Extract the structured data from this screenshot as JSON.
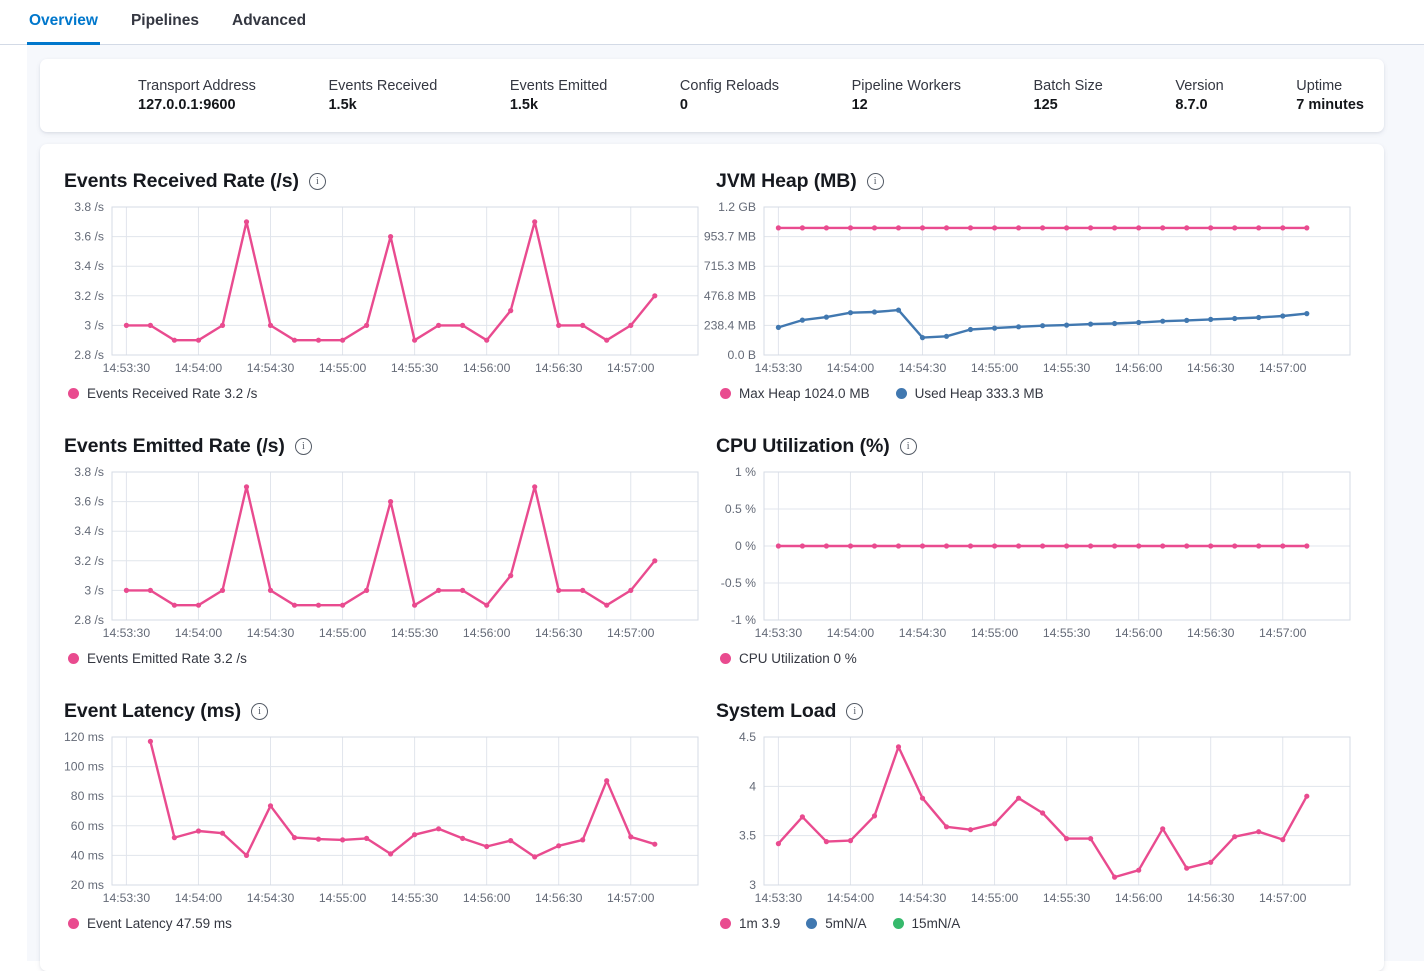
{
  "tabs": [
    {
      "label": "Overview",
      "active": true
    },
    {
      "label": "Pipelines",
      "active": false
    },
    {
      "label": "Advanced",
      "active": false
    }
  ],
  "stats": {
    "items": [
      {
        "label": "Transport Address",
        "value": "127.0.0.1:9600"
      },
      {
        "label": "Events Received",
        "value": "1.5k"
      },
      {
        "label": "Events Emitted",
        "value": "1.5k"
      },
      {
        "label": "Config Reloads",
        "value": "0"
      },
      {
        "label": "Pipeline Workers",
        "value": "12"
      },
      {
        "label": "Batch Size",
        "value": "125"
      },
      {
        "label": "Version",
        "value": "8.7.0"
      },
      {
        "label": "Uptime",
        "value": "7 minutes"
      }
    ]
  },
  "colors": {
    "pink": "#E94B8F",
    "blue": "#4178B0",
    "green": "#36B96C",
    "tab_active": "#0077CC",
    "grid": "#E1E5EC",
    "plot_border": "#D6DBE4",
    "axis_text": "#646A77",
    "page_bg": "#F6F8FC"
  },
  "chart_data": [
    {
      "type": "line",
      "title": "Events Received Rate (/s)",
      "x_tick_labels": [
        "14:53:30",
        "14:54:00",
        "14:54:30",
        "14:55:00",
        "14:55:30",
        "14:56:00",
        "14:56:30",
        "14:57:00"
      ],
      "x_step_seconds": 10,
      "y_tick_labels": [
        "3.8 /s",
        "3.6 /s",
        "3.4 /s",
        "3.2 /s",
        "3 /s",
        "2.8 /s"
      ],
      "ylim": [
        2.8,
        3.8
      ],
      "series": [
        {
          "name": "Events Received Rate",
          "color": "pink",
          "start_offset_s": 0,
          "values": [
            3,
            3,
            2.9,
            2.9,
            3,
            3.7,
            3,
            2.9,
            2.9,
            2.9,
            3,
            3.6,
            2.9,
            3,
            3,
            2.9,
            3.1,
            3.7,
            3,
            3,
            2.9,
            3,
            3.2
          ]
        }
      ],
      "legend": [
        {
          "label": "Events Received Rate 3.2 /s",
          "color": "pink"
        }
      ]
    },
    {
      "type": "line",
      "title": "JVM Heap (MB)",
      "x_tick_labels": [
        "14:53:30",
        "14:54:00",
        "14:54:30",
        "14:55:00",
        "14:55:30",
        "14:56:00",
        "14:56:30",
        "14:57:00"
      ],
      "x_step_seconds": 10,
      "y_tick_labels": [
        "1.2 GB",
        "953.7 MB",
        "715.3 MB",
        "476.8 MB",
        "238.4 MB",
        "0.0 B"
      ],
      "ylim": [
        0,
        1192.1
      ],
      "series": [
        {
          "name": "Max Heap",
          "color": "pink",
          "start_offset_s": 0,
          "values": [
            1024,
            1024,
            1024,
            1024,
            1024,
            1024,
            1024,
            1024,
            1024,
            1024,
            1024,
            1024,
            1024,
            1024,
            1024,
            1024,
            1024,
            1024,
            1024,
            1024,
            1024,
            1024,
            1024
          ]
        },
        {
          "name": "Used Heap",
          "color": "blue",
          "start_offset_s": 0,
          "values": [
            222,
            281,
            305,
            341,
            346,
            362,
            140,
            151,
            205,
            217,
            227,
            236,
            241,
            249,
            254,
            262,
            272,
            279,
            287,
            294,
            302,
            314,
            333.3
          ]
        }
      ],
      "legend": [
        {
          "label": "Max Heap 1024.0 MB",
          "color": "pink"
        },
        {
          "label": "Used Heap 333.3 MB",
          "color": "blue"
        }
      ]
    },
    {
      "type": "line",
      "title": "Events Emitted Rate (/s)",
      "x_tick_labels": [
        "14:53:30",
        "14:54:00",
        "14:54:30",
        "14:55:00",
        "14:55:30",
        "14:56:00",
        "14:56:30",
        "14:57:00"
      ],
      "x_step_seconds": 10,
      "y_tick_labels": [
        "3.8 /s",
        "3.6 /s",
        "3.4 /s",
        "3.2 /s",
        "3 /s",
        "2.8 /s"
      ],
      "ylim": [
        2.8,
        3.8
      ],
      "series": [
        {
          "name": "Events Emitted Rate",
          "color": "pink",
          "start_offset_s": 0,
          "values": [
            3,
            3,
            2.9,
            2.9,
            3,
            3.7,
            3,
            2.9,
            2.9,
            2.9,
            3,
            3.6,
            2.9,
            3,
            3,
            2.9,
            3.1,
            3.7,
            3,
            3,
            2.9,
            3,
            3.2
          ]
        }
      ],
      "legend": [
        {
          "label": "Events Emitted Rate 3.2 /s",
          "color": "pink"
        }
      ]
    },
    {
      "type": "line",
      "title": "CPU Utilization (%)",
      "x_tick_labels": [
        "14:53:30",
        "14:54:00",
        "14:54:30",
        "14:55:00",
        "14:55:30",
        "14:56:00",
        "14:56:30",
        "14:57:00"
      ],
      "x_step_seconds": 10,
      "y_tick_labels": [
        "1 %",
        "0.5 %",
        "0 %",
        "-0.5 %",
        "-1 %"
      ],
      "ylim": [
        -1,
        1
      ],
      "series": [
        {
          "name": "CPU Utilization",
          "color": "pink",
          "start_offset_s": 0,
          "values": [
            0,
            0,
            0,
            0,
            0,
            0,
            0,
            0,
            0,
            0,
            0,
            0,
            0,
            0,
            0,
            0,
            0,
            0,
            0,
            0,
            0,
            0,
            0
          ]
        }
      ],
      "legend": [
        {
          "label": "CPU Utilization 0 %",
          "color": "pink"
        }
      ]
    },
    {
      "type": "line",
      "title": "Event Latency (ms)",
      "x_tick_labels": [
        "14:53:30",
        "14:54:00",
        "14:54:30",
        "14:55:00",
        "14:55:30",
        "14:56:00",
        "14:56:30",
        "14:57:00"
      ],
      "x_step_seconds": 10,
      "y_tick_labels": [
        "120 ms",
        "100 ms",
        "80 ms",
        "60 ms",
        "40 ms",
        "20 ms"
      ],
      "ylim": [
        20,
        120
      ],
      "series": [
        {
          "name": "Event Latency",
          "color": "pink",
          "start_offset_s": 10,
          "values": [
            117,
            52,
            56.5,
            55,
            40,
            73.5,
            52,
            51,
            50.5,
            51.5,
            41,
            54,
            58,
            51.5,
            46,
            50,
            39,
            46.5,
            50.5,
            90.5,
            52.5,
            47.59
          ]
        }
      ],
      "legend": [
        {
          "label": "Event Latency 47.59 ms",
          "color": "pink"
        }
      ]
    },
    {
      "type": "line",
      "title": "System Load",
      "x_tick_labels": [
        "14:53:30",
        "14:54:00",
        "14:54:30",
        "14:55:00",
        "14:55:30",
        "14:56:00",
        "14:56:30",
        "14:57:00"
      ],
      "x_step_seconds": 10,
      "y_tick_labels": [
        "4.5",
        "4",
        "3.5",
        "3"
      ],
      "ylim": [
        3,
        4.5
      ],
      "series": [
        {
          "name": "1m",
          "color": "pink",
          "start_offset_s": 0,
          "values": [
            3.42,
            3.69,
            3.44,
            3.45,
            3.7,
            4.4,
            3.88,
            3.59,
            3.56,
            3.62,
            3.88,
            3.73,
            3.47,
            3.47,
            3.08,
            3.15,
            3.57,
            3.17,
            3.23,
            3.49,
            3.54,
            3.46,
            3.9
          ]
        }
      ],
      "legend": [
        {
          "label": "1m 3.9",
          "color": "pink"
        },
        {
          "label": "5mN/A",
          "color": "blue"
        },
        {
          "label": "15mN/A",
          "color": "green"
        }
      ]
    }
  ]
}
